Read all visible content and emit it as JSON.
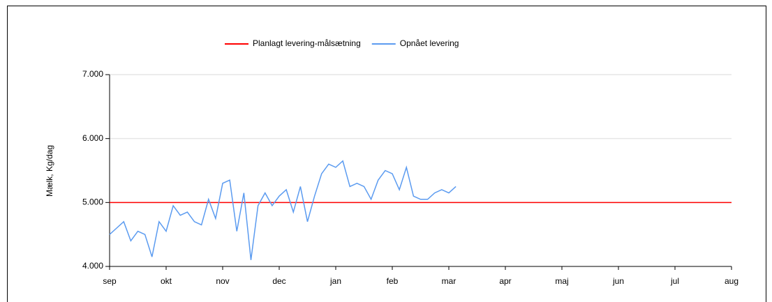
{
  "chart_data": {
    "type": "line",
    "y_label": "Mælk, Kg/dag",
    "categories": [
      "sep",
      null,
      null,
      null,
      null,
      null,
      null,
      null,
      "okt",
      null,
      null,
      null,
      null,
      null,
      null,
      null,
      "nov",
      null,
      null,
      null,
      null,
      null,
      null,
      null,
      "dec",
      null,
      null,
      null,
      null,
      null,
      null,
      null,
      "jan",
      null,
      null,
      null,
      null,
      null,
      null,
      null,
      "feb",
      null,
      null,
      null,
      null,
      null,
      null,
      null,
      "mar",
      null,
      null,
      null,
      null,
      null,
      null,
      null,
      "apr",
      null,
      null,
      null,
      null,
      null,
      null,
      null,
      "maj",
      null,
      null,
      null,
      null,
      null,
      null,
      null,
      "jun",
      null,
      null,
      null,
      null,
      null,
      null,
      null,
      "jul",
      null,
      null,
      null,
      null,
      null,
      null,
      null,
      "aug"
    ],
    "series": [
      {
        "name": "Planlagt levering-målsætning",
        "color": "#ff0000",
        "values": [
          5000,
          5000,
          5000,
          5000,
          5000,
          5000,
          5000,
          5000,
          5000,
          5000,
          5000,
          5000,
          5000,
          5000,
          5000,
          5000,
          5000,
          5000,
          5000,
          5000,
          5000,
          5000,
          5000,
          5000,
          5000,
          5000,
          5000,
          5000,
          5000,
          5000,
          5000,
          5000,
          5000,
          5000,
          5000,
          5000,
          5000,
          5000,
          5000,
          5000,
          5000,
          5000,
          5000,
          5000,
          5000,
          5000,
          5000,
          5000,
          5000,
          5000,
          5000,
          5000,
          5000,
          5000,
          5000,
          5000,
          5000,
          5000,
          5000,
          5000,
          5000,
          5000,
          5000,
          5000,
          5000,
          5000,
          5000,
          5000,
          5000,
          5000,
          5000,
          5000,
          5000,
          5000,
          5000,
          5000,
          5000,
          5000,
          5000,
          5000,
          5000,
          5000,
          5000,
          5000,
          5000,
          5000,
          5000,
          5000,
          5000
        ]
      },
      {
        "name": "Opnået levering",
        "color": "#5b9bf0",
        "values": [
          4500,
          4600,
          4700,
          4400,
          4550,
          4500,
          4150,
          4700,
          4550,
          4950,
          4800,
          4850,
          4700,
          4650,
          5050,
          4750,
          5300,
          5350,
          4550,
          5150,
          4100,
          4950,
          5150,
          4950,
          5100,
          5200,
          4850,
          5250,
          4700,
          5100,
          5450,
          5600,
          5550,
          5650,
          5250,
          5300,
          5250,
          5050,
          5350,
          5500,
          5450,
          5200,
          5550,
          5100,
          5050,
          5050,
          5150,
          5200,
          5150,
          5250,
          null,
          null,
          null,
          null,
          null,
          null,
          null,
          null,
          null,
          null,
          null,
          null,
          null,
          null,
          null,
          null,
          null,
          null,
          null,
          null,
          null,
          null,
          null,
          null,
          null,
          null,
          null,
          null,
          null,
          null,
          null,
          null,
          null,
          null,
          null,
          null,
          null,
          null,
          null
        ]
      }
    ],
    "ylim": [
      4000,
      7000
    ],
    "yticks": [
      {
        "value": 4000,
        "label": "4.000"
      },
      {
        "value": 5000,
        "label": "5.000"
      },
      {
        "value": 6000,
        "label": "6.000"
      },
      {
        "value": 7000,
        "label": "7.000"
      }
    ],
    "grid": true,
    "legend": "top"
  }
}
